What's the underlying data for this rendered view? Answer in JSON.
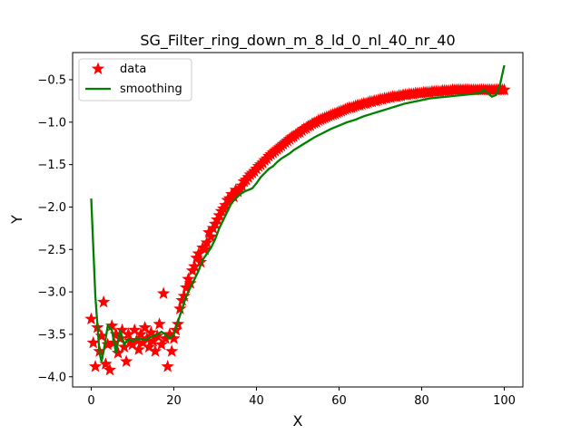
{
  "chart_data": {
    "type": "scatter",
    "title": "SG_Filter_ring_down_m_8_ld_0_nl_40_nr_40",
    "xlabel": "X",
    "ylabel": "Y",
    "xlim": [
      -4.5,
      104.5
    ],
    "ylim": [
      -4.12,
      -0.18
    ],
    "xticks": [
      0,
      20,
      40,
      60,
      80,
      100
    ],
    "yticks": [
      -4.0,
      -3.5,
      -3.0,
      -2.5,
      -2.0,
      -1.5,
      -1.0,
      -0.5
    ],
    "xtick_labels": [
      "0",
      "20",
      "40",
      "60",
      "80",
      "100"
    ],
    "ytick_labels": [
      "−4.0",
      "−3.5",
      "−3.0",
      "−2.5",
      "−2.0",
      "−1.5",
      "−1.0",
      "−0.5"
    ],
    "legend": {
      "position": "upper-left",
      "entries": [
        "data",
        "smoothing"
      ]
    },
    "grid": false,
    "colors": {
      "data": "#ff0000",
      "smoothing": "#008000"
    },
    "series": [
      {
        "name": "data",
        "marker": "star",
        "x": [
          0,
          0.5,
          1,
          1.5,
          2,
          2.5,
          3,
          3.5,
          4,
          4.5,
          5,
          5.5,
          6,
          6.5,
          7,
          7.5,
          8,
          8.5,
          9,
          9.5,
          10,
          10.5,
          11,
          11.5,
          12,
          12.5,
          13,
          13.5,
          14,
          14.5,
          15,
          15.5,
          16,
          16.5,
          17,
          17.5,
          18,
          18.5,
          19,
          19.5,
          20,
          20.5,
          21,
          21.5,
          22,
          22.5,
          23,
          23.5,
          24,
          24.5,
          25,
          25.5,
          26,
          26.5,
          27,
          27.5,
          28,
          28.5,
          29,
          29.5,
          30,
          30.5,
          31,
          31.5,
          32,
          32.5,
          33,
          33.5,
          34,
          34.5,
          35,
          35.5,
          36,
          36.5,
          37,
          37.5,
          38,
          38.5,
          39,
          39.5,
          40,
          40.5,
          41,
          41.5,
          42,
          42.5,
          43,
          43.5,
          44,
          44.5,
          45,
          45.5,
          46,
          46.5,
          47,
          47.5,
          48,
          48.5,
          49,
          49.5,
          50,
          50.5,
          51,
          51.5,
          52,
          52.5,
          53,
          53.5,
          54,
          54.5,
          55,
          55.5,
          56,
          56.5,
          57,
          57.5,
          58,
          58.5,
          59,
          59.5,
          60,
          60.5,
          61,
          61.5,
          62,
          62.5,
          63,
          63.5,
          64,
          64.5,
          65,
          65.5,
          66,
          66.5,
          67,
          67.5,
          68,
          68.5,
          69,
          69.5,
          70,
          70.5,
          71,
          71.5,
          72,
          72.5,
          73,
          73.5,
          74,
          74.5,
          75,
          75.5,
          76,
          76.5,
          77,
          77.5,
          78,
          78.5,
          79,
          79.5,
          80,
          80.5,
          81,
          81.5,
          82,
          82.5,
          83,
          83.5,
          84,
          84.5,
          85,
          85.5,
          86,
          86.5,
          87,
          87.5,
          88,
          88.5,
          89,
          89.5,
          90,
          90.5,
          91,
          91.5,
          92,
          92.5,
          93,
          93.5,
          94,
          94.5,
          95,
          95.5,
          96,
          96.5,
          97,
          97.5,
          98,
          98.5,
          99,
          99.5,
          100
        ],
        "y": [
          -3.32,
          -3.6,
          -3.88,
          -3.42,
          -3.7,
          -3.52,
          -3.12,
          -3.85,
          -3.62,
          -3.92,
          -3.4,
          -3.6,
          -3.5,
          -3.72,
          -3.55,
          -3.45,
          -3.65,
          -3.82,
          -3.5,
          -3.58,
          -3.62,
          -3.45,
          -3.57,
          -3.68,
          -3.5,
          -3.6,
          -3.42,
          -3.55,
          -3.65,
          -3.48,
          -3.58,
          -3.7,
          -3.52,
          -3.38,
          -3.62,
          -3.02,
          -3.55,
          -3.88,
          -3.5,
          -3.7,
          -3.55,
          -3.45,
          -3.38,
          -3.2,
          -3.1,
          -3.05,
          -2.95,
          -2.85,
          -2.9,
          -2.75,
          -2.7,
          -2.6,
          -2.55,
          -2.65,
          -2.48,
          -2.5,
          -2.42,
          -2.3,
          -2.35,
          -2.25,
          -2.2,
          -2.15,
          -2.1,
          -2.05,
          -2.02,
          -1.98,
          -1.92,
          -1.9,
          -1.85,
          -1.88,
          -1.8,
          -1.82,
          -1.78,
          -1.75,
          -1.7,
          -1.68,
          -1.65,
          -1.62,
          -1.6,
          -1.58,
          -1.55,
          -1.52,
          -1.5,
          -1.48,
          -1.45,
          -1.43,
          -1.4,
          -1.38,
          -1.36,
          -1.34,
          -1.32,
          -1.3,
          -1.28,
          -1.26,
          -1.24,
          -1.22,
          -1.2,
          -1.18,
          -1.17,
          -1.15,
          -1.13,
          -1.12,
          -1.1,
          -1.08,
          -1.07,
          -1.05,
          -1.04,
          -1.02,
          -1.01,
          -1.0,
          -0.98,
          -0.97,
          -0.96,
          -0.95,
          -0.94,
          -0.93,
          -0.92,
          -0.91,
          -0.9,
          -0.89,
          -0.88,
          -0.87,
          -0.86,
          -0.85,
          -0.84,
          -0.83,
          -0.83,
          -0.82,
          -0.81,
          -0.8,
          -0.8,
          -0.79,
          -0.78,
          -0.78,
          -0.77,
          -0.76,
          -0.76,
          -0.75,
          -0.75,
          -0.74,
          -0.73,
          -0.73,
          -0.72,
          -0.72,
          -0.71,
          -0.71,
          -0.7,
          -0.7,
          -0.7,
          -0.69,
          -0.69,
          -0.68,
          -0.68,
          -0.68,
          -0.67,
          -0.67,
          -0.67,
          -0.66,
          -0.66,
          -0.66,
          -0.66,
          -0.65,
          -0.65,
          -0.65,
          -0.65,
          -0.64,
          -0.64,
          -0.64,
          -0.64,
          -0.64,
          -0.63,
          -0.63,
          -0.63,
          -0.63,
          -0.63,
          -0.62,
          -0.62,
          -0.62,
          -0.62,
          -0.62,
          -0.62,
          -0.62,
          -0.62,
          -0.62,
          -0.62,
          -0.62,
          -0.62,
          -0.62,
          -0.62,
          -0.62,
          -0.62,
          -0.62,
          -0.62,
          -0.62,
          -0.62,
          -0.62,
          -0.62,
          -0.62,
          -0.62,
          -0.62,
          -0.62
        ]
      },
      {
        "name": "smoothing",
        "marker": "line",
        "x": [
          0,
          1,
          2,
          2.5,
          3,
          3.5,
          4,
          5,
          6,
          7,
          8,
          9,
          10,
          11,
          12,
          13,
          14,
          15,
          16,
          17,
          18,
          19,
          20,
          21,
          22,
          23,
          24,
          25,
          26,
          27,
          28,
          29,
          30,
          31,
          32,
          33,
          34,
          35,
          36,
          37,
          38,
          39,
          40,
          41,
          42,
          43,
          44,
          45,
          46,
          47,
          48,
          49,
          50,
          52,
          54,
          56,
          58,
          60,
          62,
          64,
          66,
          68,
          70,
          72,
          74,
          76,
          78,
          80,
          82,
          84,
          86,
          88,
          90,
          92,
          94,
          95,
          96,
          97,
          98,
          99,
          100
        ],
        "y": [
          -1.9,
          -3.05,
          -3.72,
          -3.82,
          -3.7,
          -3.55,
          -3.4,
          -3.45,
          -3.72,
          -3.45,
          -3.62,
          -3.55,
          -3.58,
          -3.55,
          -3.55,
          -3.57,
          -3.54,
          -3.52,
          -3.5,
          -3.47,
          -3.5,
          -3.55,
          -3.5,
          -3.35,
          -3.2,
          -3.05,
          -2.95,
          -2.85,
          -2.75,
          -2.62,
          -2.55,
          -2.48,
          -2.38,
          -2.25,
          -2.15,
          -2.05,
          -1.95,
          -1.9,
          -1.85,
          -1.82,
          -1.8,
          -1.78,
          -1.72,
          -1.65,
          -1.6,
          -1.55,
          -1.52,
          -1.47,
          -1.43,
          -1.4,
          -1.37,
          -1.33,
          -1.3,
          -1.24,
          -1.18,
          -1.13,
          -1.08,
          -1.04,
          -1.0,
          -0.97,
          -0.93,
          -0.9,
          -0.87,
          -0.84,
          -0.81,
          -0.78,
          -0.76,
          -0.74,
          -0.72,
          -0.71,
          -0.7,
          -0.69,
          -0.68,
          -0.67,
          -0.66,
          -0.62,
          -0.66,
          -0.7,
          -0.68,
          -0.55,
          -0.33
        ]
      }
    ]
  }
}
